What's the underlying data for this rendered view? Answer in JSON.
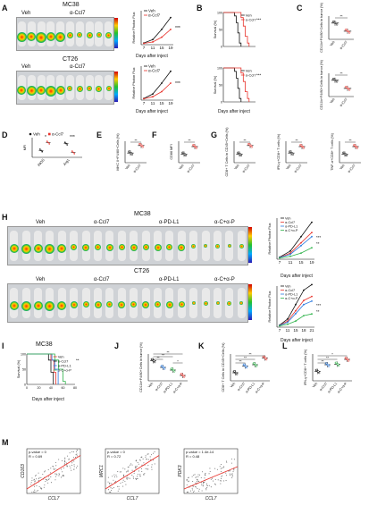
{
  "panels": {
    "A": "A",
    "B": "B",
    "C": "C",
    "D": "D",
    "E": "E",
    "F": "F",
    "G": "G",
    "H": "H",
    "I": "I",
    "J": "J",
    "K": "K",
    "L": "L",
    "M": "M"
  },
  "A": {
    "mc38_title": "MC38",
    "ct26_title": "CT26",
    "veh": "Veh",
    "ccl7": "α-Ccl7",
    "ylabel": "Relative Photon Flux",
    "xlabel": "Days after inject",
    "xticks": [
      "7",
      "11",
      "15",
      "19"
    ],
    "sig": "***"
  },
  "B": {
    "ylabel": "Survival (%)",
    "xlabel": "Days after inject",
    "veh": "Veh",
    "ccl7": "α-Ccl7",
    "sig": "***",
    "yticks": [
      "0",
      "50",
      "100"
    ]
  },
  "C": {
    "ylabel_top": "CD11b+F4/80+Cells in tumor (%)",
    "ylabel_bottom": "CD11b+F4/80+Cells in tumor (%)",
    "groups": [
      "Veh",
      "α-Ccl7"
    ],
    "sig": "**"
  },
  "D": {
    "legend_veh": "Veh",
    "legend_ccl7": "α-Ccl7",
    "ylabel": "MFI",
    "genes": [
      "iNOS",
      "Arg1"
    ],
    "sig1": "*",
    "sig2": "***"
  },
  "E": {
    "ylabel": "MHC II+F4/80+Cells (%)",
    "groups": [
      "Veh",
      "α-Ccl7"
    ],
    "sig": "**"
  },
  "F": {
    "ylabel": "CD86 MFI",
    "groups": [
      "Veh",
      "α-Ccl7"
    ],
    "sig": "**"
  },
  "G": {
    "ylabels": [
      "CD8+ T Cells in CD45+Cells (%)",
      "IFN-γ+CD8+ T cells (%)",
      "TNF-α+CD8+ T cells (%)"
    ],
    "groups": [
      "Veh",
      "α-Ccl7"
    ],
    "sig": "**"
  },
  "H": {
    "mc38_title": "MC38",
    "ct26_title": "CT26",
    "groups": [
      "Veh",
      "α-Ccl7",
      "α-PD-L1",
      "α-C+α-P"
    ],
    "ylabel": "Relative Photon Flux",
    "xlabel": "Days after inject",
    "xticks_top": [
      "7",
      "11",
      "15",
      "19"
    ],
    "xticks_bottom": [
      "7",
      "11",
      "15",
      "18",
      "21"
    ],
    "sig": "***",
    "sig2": "**"
  },
  "I": {
    "title": "MC38",
    "ylabel": "Survival (%)",
    "xlabel": "Days after inject",
    "legend": [
      "Veh",
      "α-Ccl7",
      "α-PD-L1",
      "α-C+α-P"
    ],
    "yticks": [
      "0",
      "50",
      "100"
    ],
    "xticks": [
      "0",
      "20",
      "40",
      "60",
      "80"
    ],
    "sig": "**"
  },
  "J": {
    "ylabel": "CD11b+F4/80+Cells in tumor (%)",
    "groups": [
      "Veh",
      "α-Ccl7",
      "α-PD-L1",
      "α-C+α-P"
    ],
    "sig": "**",
    "sig_single": "*"
  },
  "K": {
    "ylabel": "CD8+ T Cells in CD45+Cells (%)",
    "groups": [
      "Veh",
      "α-Ccl7",
      "α-PD-L1",
      "α-C+α-P"
    ],
    "sig": "**"
  },
  "L": {
    "ylabel": "IFN-γ+CD8+ T cells (%)",
    "groups": [
      "Veh",
      "α-Ccl7",
      "α-PD-L1",
      "α-C+α-P"
    ],
    "sig": "**",
    "sig_single": "*"
  },
  "M": {
    "plots": [
      {
        "ylabel": "CD163",
        "xlabel": "CCL7",
        "p": "p-value = 0",
        "r": "R = 0.69"
      },
      {
        "ylabel": "MRC1",
        "xlabel": "CCL7",
        "p": "p-value = 0",
        "r": "R = 0.72"
      },
      {
        "ylabel": "PDK3",
        "xlabel": "CCL7",
        "p": "p-value = 1.4e-14",
        "r": "R = 0.48"
      }
    ]
  },
  "colors": {
    "veh": "#111111",
    "ccl7": "#e8322b",
    "pdl1": "#2b7be0",
    "combo": "#2fb34a",
    "scatter_line": "#e8322b"
  }
}
